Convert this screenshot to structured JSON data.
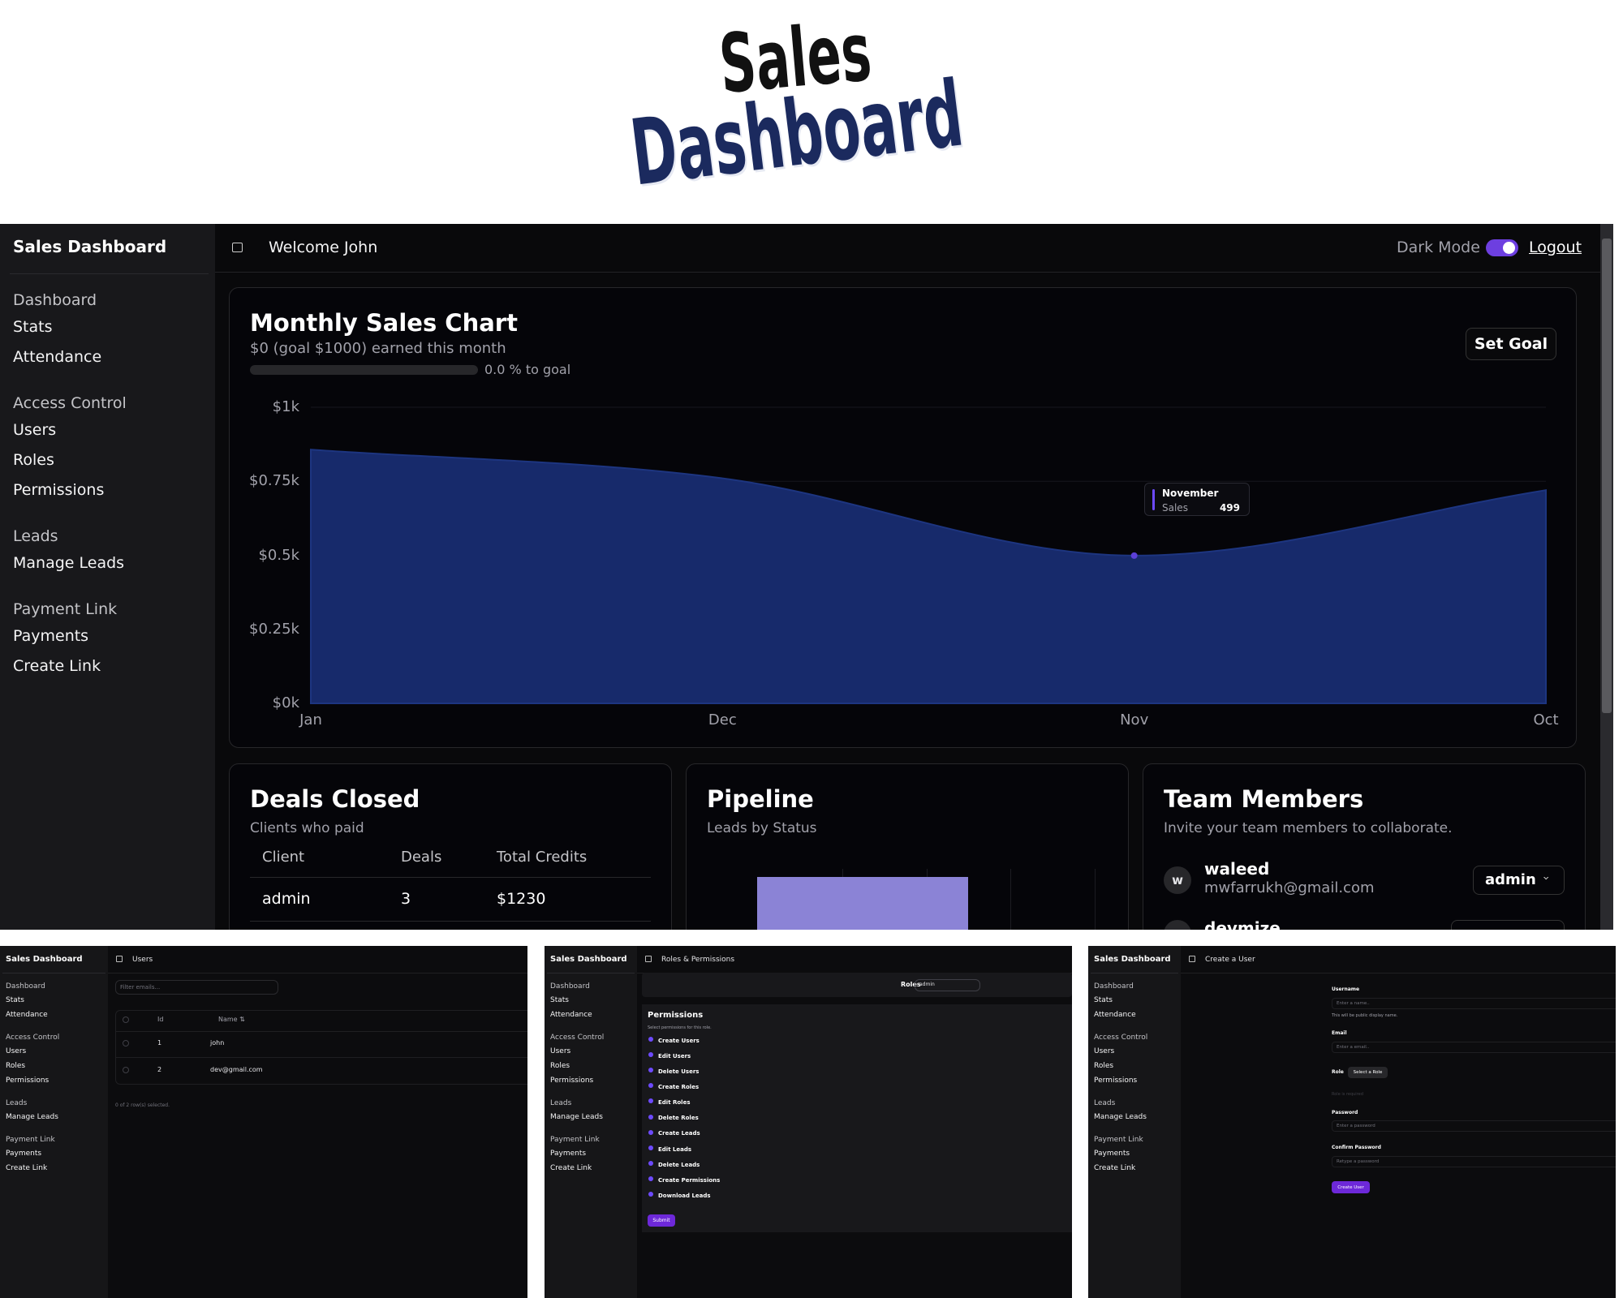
{
  "hero": {
    "line1": "Sales",
    "line2": "Dashboard"
  },
  "sidebar": {
    "brand": "Sales Dashboard",
    "groups": [
      {
        "title": "Dashboard",
        "items": [
          "Stats",
          "Attendance"
        ]
      },
      {
        "title": "Access Control",
        "items": [
          "Users",
          "Roles",
          "Permissions"
        ]
      },
      {
        "title": "Leads",
        "items": [
          "Manage Leads"
        ]
      },
      {
        "title": "Payment Link",
        "items": [
          "Payments",
          "Create Link"
        ]
      }
    ]
  },
  "topbar": {
    "welcome": "Welcome John",
    "dark_mode": "Dark Mode",
    "logout": "Logout"
  },
  "sales_card": {
    "subtitle": "$0 (goal $1000) earned this month",
    "progress_label": "0.0 % to goal",
    "button": "Set Goal"
  },
  "chart_data": {
    "type": "area",
    "title": "Monthly Sales Chart",
    "categories": [
      "Jan",
      "Dec",
      "Nov",
      "Oct"
    ],
    "series": [
      {
        "name": "Sales",
        "color": "#172a6b",
        "values": [
          857,
          760,
          499,
          720
        ]
      }
    ],
    "ylim": [
      0,
      1000
    ],
    "yticks": [
      {
        "value": 0,
        "label": "$0k"
      },
      {
        "value": 250,
        "label": "$0.25k"
      },
      {
        "value": 500,
        "label": "$0.5k"
      },
      {
        "value": 750,
        "label": "$0.75k"
      },
      {
        "value": 1000,
        "label": "$1k"
      }
    ],
    "grid": true,
    "tooltip": {
      "title": "November"
    }
  },
  "deals": {
    "title": "Deals Closed",
    "subtitle": "Clients who paid",
    "columns": [
      "Client",
      "Deals",
      "Total Credits"
    ],
    "rows": [
      [
        "admin",
        "3",
        "$1230"
      ]
    ]
  },
  "pipeline": {
    "title": "Pipeline",
    "subtitle": "Leads by Status"
  },
  "team": {
    "title": "Team Members",
    "subtitle": "Invite your team members to collaborate.",
    "members": [
      {
        "initial": "w",
        "name": "waleed",
        "email": "mwfarrukh@gmail.com",
        "role": "admin"
      },
      {
        "name": "devmize"
      }
    ]
  },
  "users_panel": {
    "title": "Users",
    "filter": "Filter emails...",
    "columns": [
      "Id",
      "Name ⇅"
    ],
    "rows": [
      [
        "1",
        "john"
      ],
      [
        "2",
        "dev@gmail.com"
      ]
    ],
    "footer": "0 of 2 row(s) selected."
  },
  "roles_panel": {
    "title": "Roles & Permissions",
    "roles_label": "Roles",
    "selected": "admin",
    "heading": "Permissions",
    "hint": "Select permissions for this role.",
    "permissions": [
      "Create Users",
      "Edit Users",
      "Delete Users",
      "Create Roles",
      "Edit Roles",
      "Delete Roles",
      "Create Leads",
      "Edit Leads",
      "Delete Leads",
      "Create Permissions",
      "Download Leads"
    ],
    "submit": "Submit"
  },
  "create_panel": {
    "title": "Create a User",
    "username": {
      "label": "Username",
      "placeholder": "Enter a name..",
      "hint": "This will be public display name."
    },
    "email": {
      "label": "Email",
      "placeholder": "Enter a email.."
    },
    "role": {
      "label": "Role",
      "button": "Select a Role",
      "error": "Role is required"
    },
    "password": {
      "label": "Password",
      "placeholder": "Enter a password"
    },
    "confirm": {
      "label": "Confirm Password",
      "placeholder": "Retype a password"
    },
    "submit": "Create User"
  }
}
